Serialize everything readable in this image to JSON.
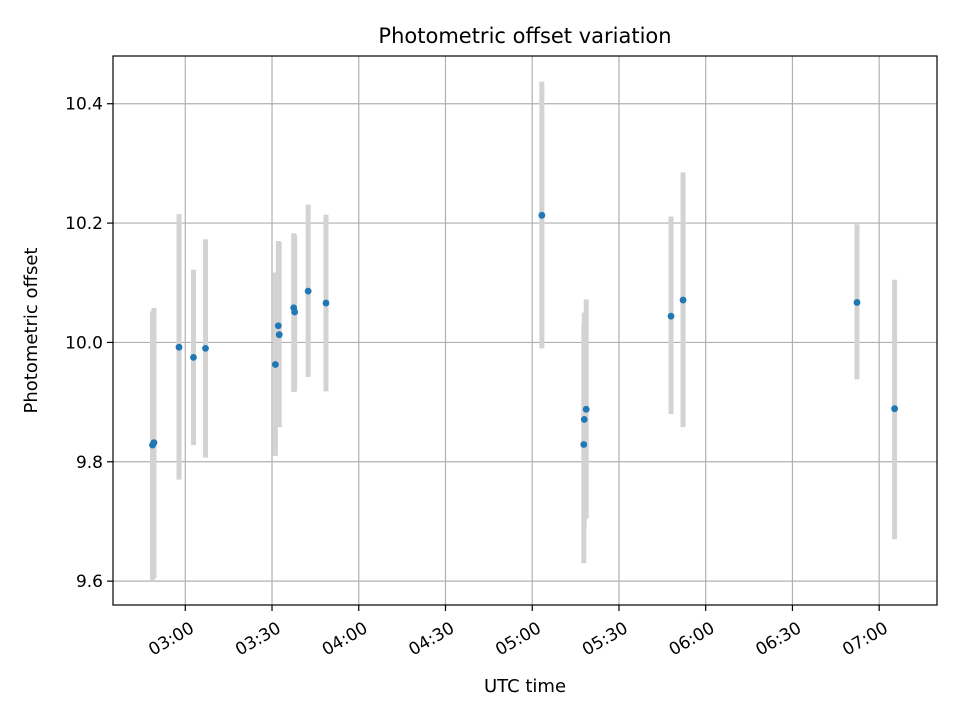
{
  "chart_data": {
    "type": "scatter",
    "title": "Photometric offset variation",
    "xlabel": "UTC time",
    "ylabel": "Photometric offset",
    "x_axis_kind": "time",
    "xlim": [
      "02:35",
      "07:20"
    ],
    "ylim": [
      9.56,
      10.48
    ],
    "xticks": [
      "03:00",
      "03:30",
      "04:00",
      "04:30",
      "05:00",
      "05:30",
      "06:00",
      "06:30",
      "07:00"
    ],
    "yticks": [
      9.6,
      9.8,
      10.0,
      10.2,
      10.4
    ],
    "ytick_labels": [
      "9.6",
      "9.8",
      "10.0",
      "10.2",
      "10.4"
    ],
    "grid": true,
    "marker_color": "#1f77b4",
    "errorbar_color": "#d3d3d3",
    "series": [
      {
        "points": [
          {
            "x": "02:48:40",
            "y": 9.828,
            "ylow": 9.6,
            "yhigh": 10.052
          },
          {
            "x": "02:49:10",
            "y": 9.832,
            "ylow": 9.605,
            "yhigh": 10.058
          },
          {
            "x": "02:57:50",
            "y": 9.992,
            "ylow": 9.77,
            "yhigh": 10.215
          },
          {
            "x": "03:02:50",
            "y": 9.975,
            "ylow": 9.828,
            "yhigh": 10.122
          },
          {
            "x": "03:07:00",
            "y": 9.99,
            "ylow": 9.807,
            "yhigh": 10.173
          },
          {
            "x": "03:31:10",
            "y": 9.963,
            "ylow": 9.81,
            "yhigh": 10.117
          },
          {
            "x": "03:32:10",
            "y": 10.028,
            "ylow": 9.858,
            "yhigh": 10.17
          },
          {
            "x": "03:32:30",
            "y": 10.013,
            "ylow": 9.858,
            "yhigh": 10.168
          },
          {
            "x": "03:37:30",
            "y": 10.058,
            "ylow": 9.917,
            "yhigh": 10.183
          },
          {
            "x": "03:37:50",
            "y": 10.051,
            "ylow": 9.918,
            "yhigh": 10.18
          },
          {
            "x": "03:42:30",
            "y": 10.086,
            "ylow": 9.942,
            "yhigh": 10.231
          },
          {
            "x": "03:48:40",
            "y": 10.066,
            "ylow": 9.918,
            "yhigh": 10.214
          },
          {
            "x": "05:03:20",
            "y": 10.213,
            "ylow": 9.99,
            "yhigh": 10.437
          },
          {
            "x": "05:17:50",
            "y": 9.829,
            "ylow": 9.63,
            "yhigh": 10.03
          },
          {
            "x": "05:18:00",
            "y": 9.871,
            "ylow": 9.69,
            "yhigh": 10.05
          },
          {
            "x": "05:18:40",
            "y": 9.888,
            "ylow": 9.705,
            "yhigh": 10.072
          },
          {
            "x": "05:48:00",
            "y": 10.044,
            "ylow": 9.88,
            "yhigh": 10.211
          },
          {
            "x": "05:52:10",
            "y": 10.071,
            "ylow": 9.858,
            "yhigh": 10.285
          },
          {
            "x": "06:52:20",
            "y": 10.067,
            "ylow": 9.938,
            "yhigh": 10.198
          },
          {
            "x": "07:05:20",
            "y": 9.889,
            "ylow": 9.67,
            "yhigh": 10.105
          }
        ]
      }
    ]
  }
}
